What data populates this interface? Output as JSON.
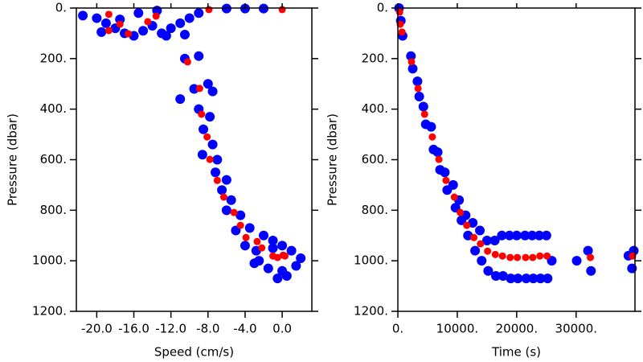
{
  "chart_data": [
    {
      "type": "scatter",
      "xlabel": "Speed (cm/s)",
      "ylabel": "Pressure (dbar)",
      "xlim": [
        -22.2,
        3.2
      ],
      "ylim": [
        0,
        1200
      ],
      "y_reversed": true,
      "xticks": [
        {
          "value": -20,
          "label": "-20.0"
        },
        {
          "value": -16,
          "label": "-16.0"
        },
        {
          "value": -12,
          "label": "-12.0"
        },
        {
          "value": -8,
          "label": "-8.0"
        },
        {
          "value": -4,
          "label": "-4.0"
        },
        {
          "value": 0,
          "label": "0.0"
        }
      ],
      "yticks": [
        {
          "value": 0,
          "label": "0."
        },
        {
          "value": 200,
          "label": "200."
        },
        {
          "value": 400,
          "label": "400."
        },
        {
          "value": 600,
          "label": "600."
        },
        {
          "value": 800,
          "label": "800."
        },
        {
          "value": 1000,
          "label": "1000."
        },
        {
          "value": 1200,
          "label": "1200."
        }
      ],
      "series": [
        {
          "color": "#0000ff",
          "x": [
            -21.5,
            -20,
            -19,
            -18,
            -17,
            -16,
            -15,
            -14,
            -13,
            -12,
            -11,
            -10,
            -9,
            -12.5,
            -17.5,
            -15.5,
            -13.5,
            -6,
            -4,
            -2,
            -10.5,
            -19.5,
            -10.5,
            -9,
            -11,
            -9.5,
            -8,
            -7.5,
            -9,
            -7.8,
            -8.5,
            -7.5,
            -8.6,
            -7,
            -7.2,
            -6,
            -6.5,
            -5.5,
            -6,
            -4.5,
            -5,
            -3.5,
            -4,
            -2.8,
            -2,
            -1,
            0,
            1,
            2,
            -1.5,
            0.5,
            -0.5,
            -2.5,
            1.5,
            -3,
            0,
            -1
          ],
          "y": [
            30,
            40,
            60,
            80,
            100,
            110,
            90,
            70,
            100,
            80,
            60,
            40,
            20,
            110,
            45,
            20,
            10,
            2,
            2,
            2,
            105,
            95,
            200,
            190,
            360,
            320,
            300,
            330,
            400,
            430,
            480,
            540,
            580,
            600,
            650,
            680,
            720,
            760,
            800,
            820,
            880,
            870,
            940,
            960,
            900,
            920,
            940,
            960,
            990,
            1030,
            1060,
            1070,
            1000,
            1020,
            1010,
            1040,
            950
          ]
        },
        {
          "color": "#ff0000",
          "x": [
            -18.7,
            -17.5,
            -18.7,
            -16.6,
            -14.5,
            -13.6,
            -7.9,
            0,
            -10.2,
            -8.9,
            -8.7,
            -8.1,
            -7.8,
            -7.0,
            -6.3,
            -5.2,
            -4.5,
            -3.9,
            -2.7,
            -2.2,
            -1.0,
            -0.5,
            0.1,
            0.3
          ],
          "y": [
            25,
            64,
            89,
            102,
            54,
            32,
            6,
            6,
            213,
            318,
            420,
            510,
            599,
            682,
            748,
            809,
            860,
            908,
            924,
            949,
            981,
            987,
            978,
            981
          ]
        }
      ]
    },
    {
      "type": "scatter",
      "xlabel": "Time (s)",
      "ylabel": "Pressure (dbar)",
      "xlim": [
        0,
        39900
      ],
      "ylim": [
        0,
        1200
      ],
      "y_reversed": true,
      "xticks": [
        {
          "value": 0,
          "label": "0."
        },
        {
          "value": 10000,
          "label": "10000."
        },
        {
          "value": 20000,
          "label": "20000."
        },
        {
          "value": 30000,
          "label": "30000."
        }
      ],
      "yticks": [
        {
          "value": 0,
          "label": "0."
        },
        {
          "value": 200,
          "label": "200."
        },
        {
          "value": 400,
          "label": "400."
        },
        {
          "value": 600,
          "label": "600."
        },
        {
          "value": 800,
          "label": "800."
        },
        {
          "value": 1000,
          "label": "1000."
        },
        {
          "value": 1200,
          "label": "1200."
        }
      ],
      "series": [
        {
          "color": "#0000ff",
          "x": [
            200,
            500,
            800,
            2200,
            2500,
            3300,
            3600,
            4300,
            4700,
            5600,
            6000,
            6700,
            7100,
            7900,
            8300,
            9300,
            9700,
            10300,
            10700,
            11400,
            11800,
            12600,
            13000,
            13800,
            14100,
            15000,
            15200,
            16300,
            16500,
            17500,
            17700,
            18800,
            19000,
            20000,
            20200,
            21400,
            21600,
            22600,
            22800,
            23800,
            24000,
            25000,
            25200,
            25900,
            30100,
            32000,
            32500,
            38800,
            39400,
            39700
          ],
          "y": [
            0,
            50,
            110,
            190,
            240,
            290,
            350,
            390,
            460,
            470,
            560,
            570,
            640,
            650,
            720,
            700,
            790,
            760,
            840,
            820,
            900,
            850,
            960,
            880,
            1000,
            920,
            1040,
            920,
            1060,
            900,
            1060,
            900,
            1070,
            900,
            1070,
            900,
            1070,
            900,
            1070,
            900,
            1070,
            900,
            1070,
            1000,
            1000,
            960,
            1040,
            980,
            1030,
            960
          ]
        },
        {
          "color": "#ff0000",
          "x": [
            300,
            400,
            700,
            2300,
            3400,
            4500,
            5800,
            6900,
            8100,
            9500,
            10500,
            11600,
            12800,
            13900,
            15100,
            16400,
            17600,
            18900,
            20100,
            21500,
            22700,
            23900,
            25100,
            32400,
            39500
          ],
          "y": [
            16,
            64,
            95,
            213,
            318,
            420,
            510,
            599,
            682,
            748,
            809,
            860,
            908,
            933,
            962,
            975,
            981,
            987,
            987,
            987,
            987,
            981,
            981,
            987,
            981
          ]
        }
      ]
    }
  ]
}
